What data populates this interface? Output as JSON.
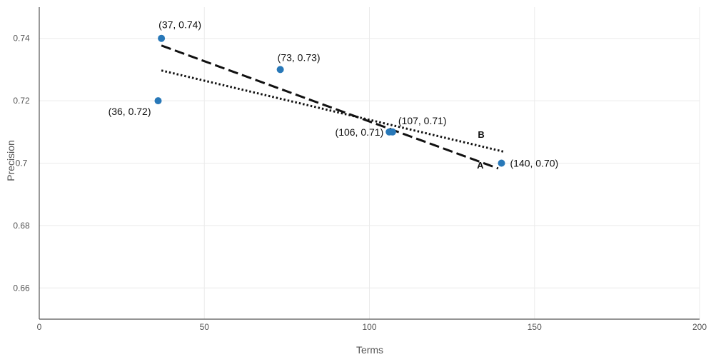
{
  "chart_data": {
    "type": "scatter",
    "xlabel": "Terms",
    "ylabel": "Precision",
    "xlim": [
      0,
      200
    ],
    "ylim": [
      0.65,
      0.75
    ],
    "xticks": [
      0,
      50,
      100,
      150,
      200
    ],
    "yticks": [
      0.66,
      0.68,
      0.7,
      0.72,
      0.74
    ],
    "xtick_labels": [
      "0",
      "50",
      "100",
      "150",
      "200"
    ],
    "ytick_labels": [
      "0.66",
      "0.68",
      "0.7",
      "0.72",
      "0.74"
    ],
    "grid": true,
    "point_color": "#2878b8",
    "points": [
      {
        "x": 37,
        "y": 0.74,
        "label": "(37, 0.74)"
      },
      {
        "x": 36,
        "y": 0.72,
        "label": "(36, 0.72)"
      },
      {
        "x": 73,
        "y": 0.73,
        "label": "(73, 0.73)"
      },
      {
        "x": 106,
        "y": 0.71,
        "label": "(106, 0.71)"
      },
      {
        "x": 107,
        "y": 0.71,
        "label": "(107, 0.71)"
      },
      {
        "x": 140,
        "y": 0.7,
        "label": "(140, 0.70)"
      }
    ],
    "lines": [
      {
        "name": "A",
        "style": "dashed",
        "x": [
          37,
          139
        ],
        "y": [
          0.7377,
          0.6983
        ]
      },
      {
        "name": "B",
        "style": "dotted",
        "x": [
          37,
          141
        ],
        "y": [
          0.7297,
          0.7036
        ]
      }
    ]
  }
}
